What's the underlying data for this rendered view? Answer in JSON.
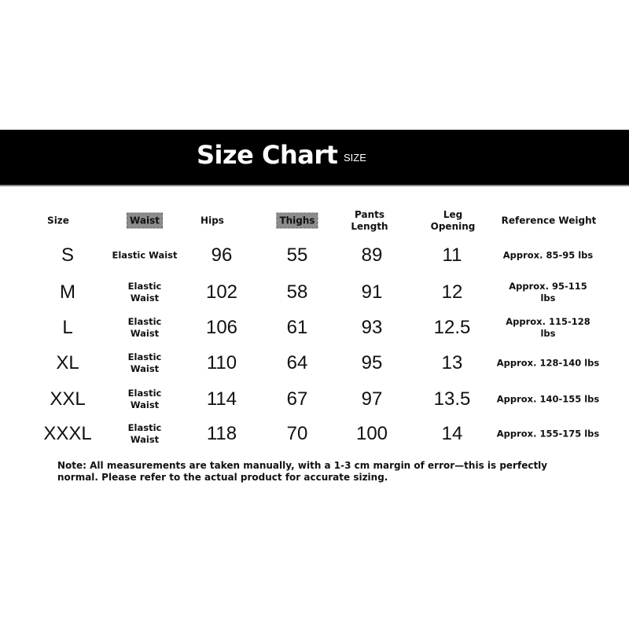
{
  "header": {
    "title": "Size Chart",
    "subtitle": "SIZE"
  },
  "columns": [
    "Size",
    "Waist",
    "Hips",
    "Thighs",
    "Pants\nLength",
    "Leg\nOpening",
    "Reference Weight"
  ],
  "rows": [
    [
      "S",
      "Elastic Waist",
      "96",
      "55",
      "89",
      "11",
      "Approx. 85-95 lbs"
    ],
    [
      "M",
      "Elastic\nWaist",
      "102",
      "58",
      "91",
      "12",
      "Approx. 95-115\nlbs"
    ],
    [
      "L",
      "Elastic\nWaist",
      "106",
      "61",
      "93",
      "12.5",
      "Approx. 115-128\nlbs"
    ],
    [
      "XL",
      "Elastic\nWaist",
      "110",
      "64",
      "95",
      "13",
      "Approx. 128-140 lbs"
    ],
    [
      "XXL",
      "Elastic\nWaist",
      "114",
      "67",
      "97",
      "13.5",
      "Approx. 140-155 lbs"
    ],
    [
      "XXXL",
      "Elastic\nWaist",
      "118",
      "70",
      "100",
      "14",
      "Approx. 155-175 lbs"
    ]
  ],
  "note": "Note: All measurements are taken manually, with a 1-3 cm margin of error—this is perfectly normal. Please refer to the actual product for accurate sizing."
}
